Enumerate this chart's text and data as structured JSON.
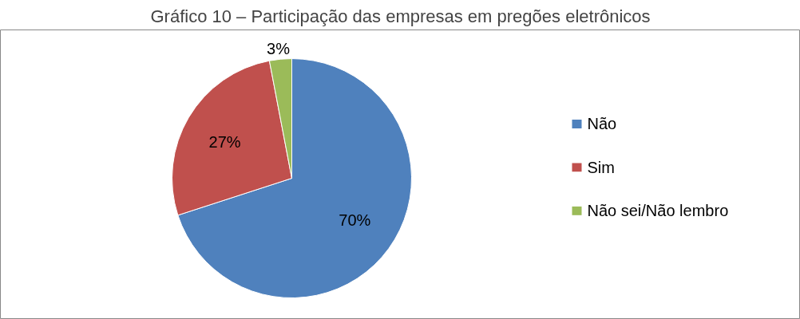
{
  "chart_data": {
    "type": "pie",
    "title": "Gráfico 10 – Participação das empresas em pregões eletrônicos",
    "categories": [
      "Não",
      "Sim",
      "Não sei/Não lembro"
    ],
    "values": [
      70,
      27,
      3
    ],
    "colors": [
      "#4f81bd",
      "#c0504d",
      "#9bbb59"
    ],
    "value_labels": [
      "70%",
      "27%",
      "3%"
    ],
    "legend": "right"
  }
}
